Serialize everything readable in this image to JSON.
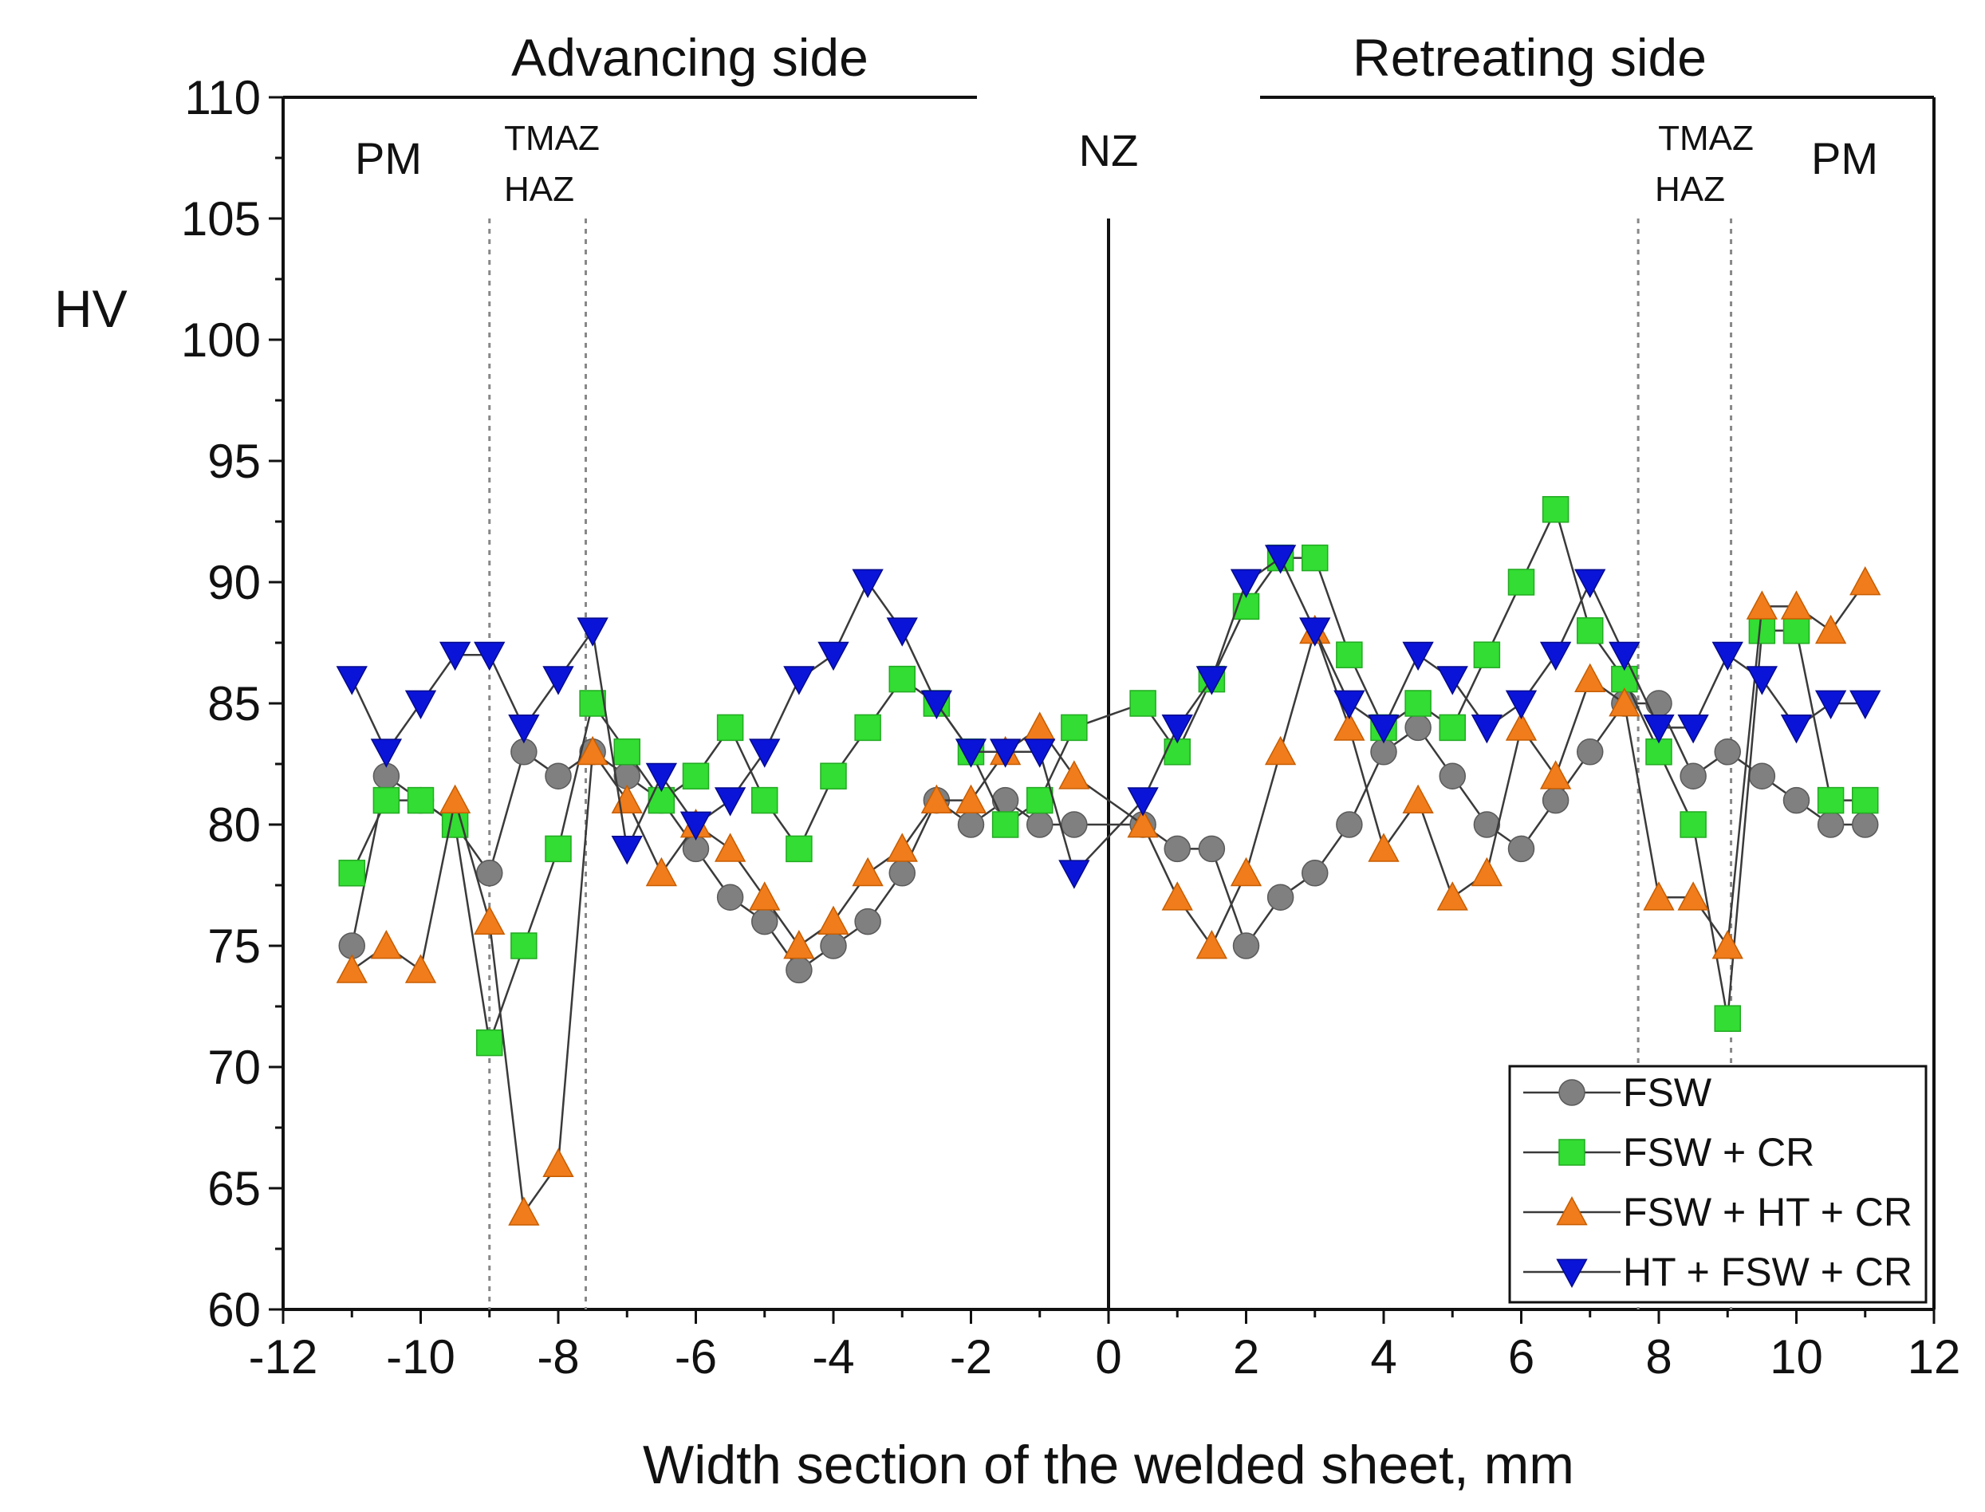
{
  "chart_data": {
    "type": "line",
    "title": "",
    "xlabel": "Width section of the welded sheet, mm",
    "ylabel": "HV",
    "xlim": [
      -12,
      12
    ],
    "ylim": [
      60,
      110
    ],
    "xticks": [
      -12,
      -10,
      -8,
      -6,
      -4,
      -2,
      0,
      2,
      4,
      6,
      8,
      10,
      12
    ],
    "yticks": [
      60,
      65,
      70,
      75,
      80,
      85,
      90,
      95,
      100,
      105,
      110
    ],
    "grid": false,
    "legend_position": "bottom-right",
    "side_labels": {
      "left": "Advancing side",
      "right": "Retreating side"
    },
    "regions": {
      "pm_left": "PM",
      "tmaz_left": "TMAZ",
      "haz_left": "HAZ",
      "nz": "NZ",
      "tmaz_right": "TMAZ",
      "haz_right": "HAZ",
      "pm_right": "PM"
    },
    "reference_lines": {
      "dotted_x": [
        -9,
        -7.6,
        7.7,
        9.05
      ],
      "solid_x": 0,
      "solid_y_top": 105
    },
    "x": [
      -11,
      -10.5,
      -10,
      -9.5,
      -9,
      -8.5,
      -8,
      -7.5,
      -7,
      -6.5,
      -6,
      -5.5,
      -5,
      -4.5,
      -4,
      -3.5,
      -3,
      -2.5,
      -2,
      -1.5,
      -1,
      -0.5,
      0.5,
      1,
      1.5,
      2,
      2.5,
      3,
      3.5,
      4,
      4.5,
      5,
      5.5,
      6,
      6.5,
      7,
      7.5,
      8,
      8.5,
      9,
      9.5,
      10,
      10.5,
      11
    ],
    "series": [
      {
        "name": "FSW",
        "marker": "circle",
        "color": "#808080",
        "values": [
          75,
          82,
          81,
          80,
          78,
          83,
          82,
          83,
          82,
          81,
          79,
          77,
          76,
          74,
          75,
          76,
          78,
          81,
          80,
          81,
          80,
          80,
          80,
          79,
          79,
          75,
          77,
          78,
          80,
          83,
          84,
          82,
          80,
          79,
          81,
          83,
          85,
          85,
          82,
          83,
          82,
          81,
          80,
          80
        ]
      },
      {
        "name": "FSW + CR",
        "marker": "square",
        "color": "#33dd33",
        "values": [
          78,
          81,
          81,
          80,
          71,
          75,
          79,
          85,
          83,
          81,
          82,
          84,
          81,
          79,
          82,
          84,
          86,
          85,
          83,
          80,
          81,
          84,
          85,
          83,
          86,
          89,
          91,
          91,
          87,
          84,
          85,
          84,
          87,
          90,
          93,
          88,
          86,
          83,
          80,
          72,
          88,
          88,
          81,
          81
        ]
      },
      {
        "name": "FSW + HT + CR",
        "marker": "triangle-up",
        "color": "#f07c1b",
        "values": [
          74,
          75,
          74,
          81,
          76,
          64,
          66,
          83,
          81,
          78,
          80,
          79,
          77,
          75,
          76,
          78,
          79,
          81,
          81,
          83,
          84,
          82,
          80,
          77,
          75,
          78,
          83,
          88,
          84,
          79,
          81,
          77,
          78,
          84,
          82,
          86,
          85,
          77,
          77,
          75,
          89,
          89,
          88,
          90
        ]
      },
      {
        "name": "HT + FSW + CR",
        "marker": "triangle-down",
        "color": "#0a14d8",
        "values": [
          86,
          83,
          85,
          87,
          87,
          84,
          86,
          88,
          79,
          82,
          80,
          81,
          83,
          86,
          87,
          90,
          88,
          85,
          83,
          83,
          83,
          78,
          81,
          84,
          86,
          90,
          91,
          88,
          85,
          84,
          87,
          86,
          84,
          85,
          87,
          90,
          87,
          84,
          84,
          87,
          86,
          84,
          85,
          85
        ]
      }
    ]
  }
}
